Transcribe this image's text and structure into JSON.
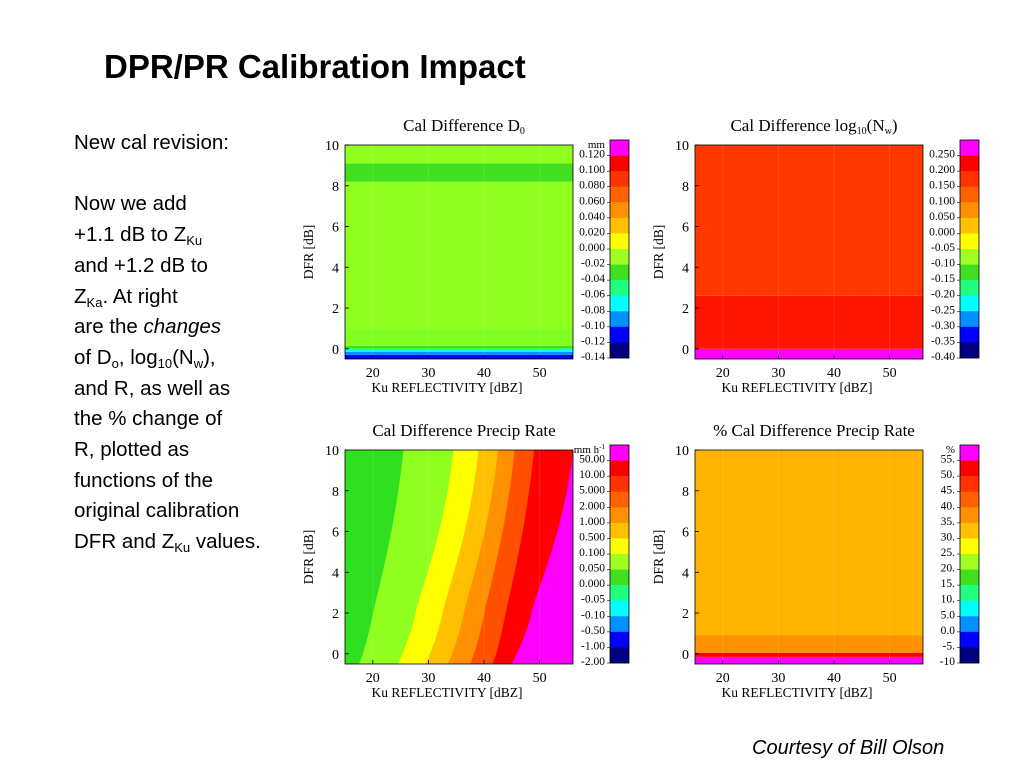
{
  "slide": {
    "title": "DPR/PR Calibration Impact",
    "courtesy": "Courtesy of Bill Olson",
    "text": {
      "l1": "New cal revision:",
      "l2": "Now we add",
      "l3_a": "+1.1 dB to Z",
      "l3_sub": "Ku",
      "l4": "and +1.2 dB to",
      "l5_a": "Z",
      "l5_sub": "Ka",
      "l5_b": ".  At right",
      "l6_a": "are the ",
      "l6_i": "changes",
      "l7_a": "of D",
      "l7_sub1": "o",
      "l7_b": ", log",
      "l7_sub2": "10",
      "l7_c": "(N",
      "l7_sub3": "w",
      "l7_d": "),",
      "l8": "and R, as well as",
      "l9": "the % change of",
      "l10": "R, plotted as",
      "l11": "functions of the",
      "l12": "original calibration",
      "l13_a": "DFR and Z",
      "l13_sub": "Ku",
      "l13_b": " values."
    }
  },
  "colors": {
    "magenta": "#ff00ff",
    "red": "#ff0000",
    "red_orange": "#ff3300",
    "orange": "#ff8000",
    "amber": "#ffb000",
    "yellow": "#ffff00",
    "yellow_green": "#b8ff00",
    "light_green": "#80ff20",
    "green": "#20e020",
    "cyan": "#00ffff",
    "sky_blue": "#0090ff",
    "blue": "#0000ff",
    "navy": "#000080"
  },
  "chart_data": [
    {
      "id": "d0",
      "type": "heatmap",
      "title": "Cal Difference D",
      "title_sub": "0",
      "title_suffix": "",
      "xlabel": "Ku REFLECTIVITY [dBZ]",
      "ylabel": "DFR [dB]",
      "xlim": [
        15,
        56
      ],
      "ylim": [
        -0.5,
        10
      ],
      "x_ticks": [
        "20",
        "30",
        "40",
        "50"
      ],
      "x_tick_values": [
        20,
        30,
        40,
        50
      ],
      "y_ticks": [
        "0",
        "2",
        "4",
        "6",
        "8",
        "10"
      ],
      "y_tick_values": [
        0,
        2,
        4,
        6,
        8,
        10
      ],
      "colorbar_unit": "mm",
      "colorbar_labels": [
        "0.120",
        "0.100",
        "0.080",
        "0.060",
        "0.040",
        "0.020",
        "0.000",
        "-0.02",
        "-0.04",
        "-0.06",
        "-0.08",
        "-0.10",
        "-0.12",
        "-0.14"
      ],
      "colorbar_colors": [
        "#ff00ff",
        "#ff0000",
        "#ff3300",
        "#ff6000",
        "#ff9000",
        "#ffc000",
        "#ffff00",
        "#a0ff20",
        "#40e020",
        "#20ff80",
        "#00ffff",
        "#0090ff",
        "#0000ff",
        "#000080"
      ],
      "bands": [
        {
          "y0": -0.5,
          "y1": -0.3,
          "color": "#0000ff"
        },
        {
          "y0": -0.3,
          "y1": -0.15,
          "color": "#0090ff"
        },
        {
          "y0": -0.15,
          "y1": 0.0,
          "color": "#00ffff"
        },
        {
          "y0": 0.0,
          "y1": 0.15,
          "color": "#40e020"
        },
        {
          "y0": 0.15,
          "y1": 1.0,
          "color": "#80ff20"
        },
        {
          "y0": 1.0,
          "y1": 8.2,
          "color": "#90ff20"
        },
        {
          "y0": 8.2,
          "y1": 9.1,
          "color": "#40e020"
        },
        {
          "y0": 9.1,
          "y1": 10.0,
          "color": "#90ff20"
        }
      ]
    },
    {
      "id": "nw",
      "type": "heatmap",
      "title": "Cal Difference log",
      "title_sub": "10",
      "title_suffix": "(N",
      "title_sub2": "w",
      "title_suffix2": ")",
      "xlabel": "Ku REFLECTIVITY [dBZ]",
      "ylabel": "DFR [dB]",
      "xlim": [
        15,
        56
      ],
      "ylim": [
        -0.5,
        10
      ],
      "x_ticks": [
        "20",
        "30",
        "40",
        "50"
      ],
      "x_tick_values": [
        20,
        30,
        40,
        50
      ],
      "y_ticks": [
        "0",
        "2",
        "4",
        "6",
        "8",
        "10"
      ],
      "y_tick_values": [
        0,
        2,
        4,
        6,
        8,
        10
      ],
      "colorbar_unit": "",
      "colorbar_labels": [
        "0.250",
        "0.200",
        "0.150",
        "0.100",
        "0.050",
        "0.000",
        "-0.05",
        "-0.10",
        "-0.15",
        "-0.20",
        "-0.25",
        "-0.30",
        "-0.35",
        "-0.40"
      ],
      "colorbar_colors": [
        "#ff00ff",
        "#ff0000",
        "#ff3300",
        "#ff6000",
        "#ff9000",
        "#ffc000",
        "#ffff00",
        "#a0ff20",
        "#40e020",
        "#20ff80",
        "#00ffff",
        "#0090ff",
        "#0000ff",
        "#000080"
      ],
      "bands": [
        {
          "y0": -0.5,
          "y1": 0.0,
          "color": "#ff00ff"
        },
        {
          "y0": 0.0,
          "y1": 2.6,
          "color": "#ff1400"
        },
        {
          "y0": 2.6,
          "y1": 10.0,
          "color": "#ff3800"
        }
      ]
    },
    {
      "id": "rate",
      "type": "heatmap",
      "title": "Cal Difference Precip Rate",
      "xlabel": "Ku REFLECTIVITY [dBZ]",
      "ylabel": "DFR [dB]",
      "xlim": [
        15,
        56
      ],
      "ylim": [
        -0.5,
        10
      ],
      "x_ticks": [
        "20",
        "30",
        "40",
        "50"
      ],
      "x_tick_values": [
        20,
        30,
        40,
        50
      ],
      "y_ticks": [
        "0",
        "2",
        "4",
        "6",
        "8",
        "10"
      ],
      "y_tick_values": [
        0,
        2,
        4,
        6,
        8,
        10
      ],
      "colorbar_unit": "mm h",
      "colorbar_unit_sup": "-1",
      "colorbar_labels": [
        "50.00",
        "10.00",
        "5.000",
        "2.000",
        "1.000",
        "0.500",
        "0.100",
        "0.050",
        "0.000",
        "-0.05",
        "-0.10",
        "-0.50",
        "-1.00",
        "-2.00"
      ],
      "colorbar_colors": [
        "#ff00ff",
        "#ff0000",
        "#ff3300",
        "#ff6000",
        "#ff9000",
        "#ffc000",
        "#ffff00",
        "#a0ff20",
        "#40e020",
        "#20ff80",
        "#00ffff",
        "#0090ff",
        "#0000ff",
        "#000080"
      ],
      "contours": [
        {
          "x_at_top": 22.0,
          "x_at_bottom": 15.5,
          "color": "#30e020"
        },
        {
          "x_at_top": 25.5,
          "x_at_bottom": 17.5,
          "color": "#90ff20"
        },
        {
          "x_at_top": 34.5,
          "x_at_bottom": 24.5,
          "color": "#ffff00"
        },
        {
          "x_at_top": 39.0,
          "x_at_bottom": 29.5,
          "color": "#ffc000"
        },
        {
          "x_at_top": 42.5,
          "x_at_bottom": 33.5,
          "color": "#ff9000"
        },
        {
          "x_at_top": 45.5,
          "x_at_bottom": 37.5,
          "color": "#ff5000"
        },
        {
          "x_at_top": 49.0,
          "x_at_bottom": 41.5,
          "color": "#ff0000"
        },
        {
          "x_at_top": 56.0,
          "x_at_bottom": 45.0,
          "color": "#ff00ff"
        }
      ]
    },
    {
      "id": "pct",
      "type": "heatmap",
      "title": "% Cal Difference Precip Rate",
      "xlabel": "Ku REFLECTIVITY [dBZ]",
      "ylabel": "DFR [dB]",
      "xlim": [
        15,
        56
      ],
      "ylim": [
        -0.5,
        10
      ],
      "x_ticks": [
        "20",
        "30",
        "40",
        "50"
      ],
      "x_tick_values": [
        20,
        30,
        40,
        50
      ],
      "y_ticks": [
        "0",
        "2",
        "4",
        "6",
        "8",
        "10"
      ],
      "y_tick_values": [
        0,
        2,
        4,
        6,
        8,
        10
      ],
      "colorbar_unit": "%",
      "colorbar_labels": [
        "55.",
        "50.",
        "45.",
        "40.",
        "35.",
        "30.",
        "25.",
        "20.",
        "15.",
        "10.",
        "5.0",
        "0.0",
        "-5.",
        "-10"
      ],
      "colorbar_colors": [
        "#ff00ff",
        "#ff0000",
        "#ff3300",
        "#ff6000",
        "#ff9000",
        "#ffc000",
        "#ffff00",
        "#a0ff20",
        "#40e020",
        "#20ff80",
        "#00ffff",
        "#0090ff",
        "#0000ff",
        "#000080"
      ],
      "bands": [
        {
          "y0": -0.5,
          "y1": -0.15,
          "color": "#ff00ff"
        },
        {
          "y0": -0.15,
          "y1": 0.05,
          "color": "#ff0000"
        },
        {
          "y0": 0.05,
          "y1": 0.9,
          "color": "#ff9000"
        },
        {
          "y0": 0.9,
          "y1": 10.0,
          "color": "#ffb400"
        }
      ]
    }
  ]
}
